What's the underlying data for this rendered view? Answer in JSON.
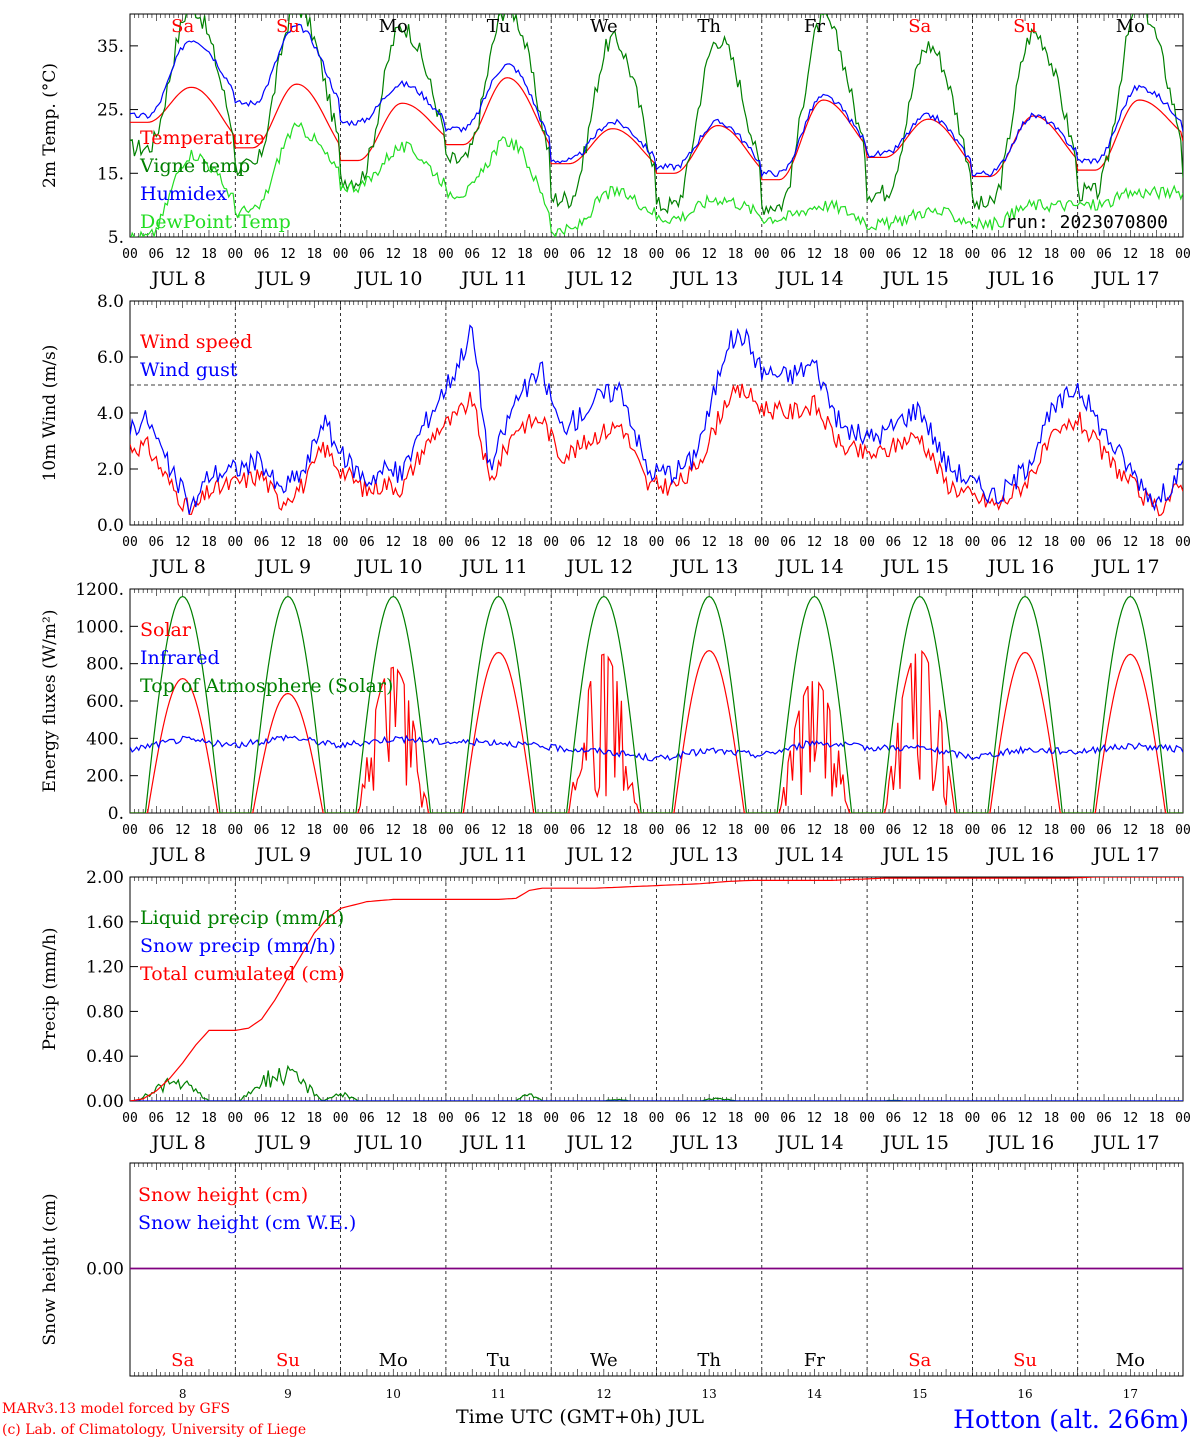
{
  "colors": {
    "red": "#ff0000",
    "green": "#008000",
    "blue": "#0000ff",
    "lightgreen": "#22dd22",
    "purple": "#800080",
    "black": "#000000"
  },
  "axis": {
    "hour_labels": [
      "00",
      "06",
      "12",
      "18"
    ],
    "final_hour_label": "00",
    "date_labels": [
      "JUL  8",
      "JUL  9",
      "JUL 10",
      "JUL 11",
      "JUL 12",
      "JUL 13",
      "JUL 14",
      "JUL 15",
      "JUL 16",
      "JUL 17"
    ],
    "weekdays": [
      {
        "label": "Sa",
        "weekend": true
      },
      {
        "label": "Su",
        "weekend": true
      },
      {
        "label": "Mo",
        "weekend": false
      },
      {
        "label": "Tu",
        "weekend": false
      },
      {
        "label": "We",
        "weekend": false
      },
      {
        "label": "Th",
        "weekend": false
      },
      {
        "label": "Fr",
        "weekend": false
      },
      {
        "label": "Sa",
        "weekend": true
      },
      {
        "label": "Su",
        "weekend": true
      },
      {
        "label": "Mo",
        "weekend": false
      }
    ],
    "day_numbers": [
      "8",
      "9",
      "10",
      "11",
      "12",
      "13",
      "14",
      "15",
      "16",
      "17"
    ],
    "bottom_label": "Time UTC (GMT+0h) JUL"
  },
  "footer": {
    "credit_line1": "MARv3.13 model forced by GFS",
    "credit_line2": "(c) Lab. of Climatology, University of Liege",
    "station": "Hotton (alt. 266m)"
  },
  "chart_data": [
    {
      "type": "line",
      "id": "temperature",
      "ylabel": "2m Temp. (°C)",
      "ylim": [
        5,
        40
      ],
      "yticks": [
        5,
        15,
        25,
        35
      ],
      "ytick_labels": [
        "5.",
        "15.",
        "25.",
        "35."
      ],
      "run_label": "run: 2023070800",
      "x_unit": "hours since 2023-07-08 00 UTC",
      "x_range": [
        0,
        240
      ],
      "series": [
        {
          "name": "Temperature",
          "color": "red",
          "mins": [
            23,
            19,
            17,
            19.5,
            16.5,
            15,
            14,
            17.5,
            14.5,
            15.5,
            20
          ],
          "maxs": [
            28.5,
            29,
            26,
            30,
            22,
            22.5,
            26.5,
            23.5,
            24,
            26.5
          ],
          "noise": 0
        },
        {
          "name": "Vigne temp",
          "color": "green",
          "mins": [
            19,
            16,
            14,
            17,
            11,
            10,
            10,
            12,
            10,
            12,
            15
          ],
          "maxs": [
            41,
            41,
            38,
            41,
            36,
            36,
            39,
            35,
            37,
            41
          ],
          "noise": 1.5
        },
        {
          "name": "Humidex",
          "color": "blue",
          "mins": [
            24,
            26,
            23,
            22,
            17,
            16,
            15,
            18,
            15,
            17,
            22
          ],
          "maxs": [
            36,
            38,
            29,
            32,
            23,
            23,
            27,
            24,
            24,
            28.5
          ],
          "noise": 0.5
        },
        {
          "name": "DewPoint Temp",
          "color": "lightgreen",
          "mins": [
            5,
            9,
            13,
            12,
            6,
            8,
            8,
            7,
            7,
            10,
            12
          ],
          "maxs": [
            18,
            22,
            19,
            20,
            12,
            11,
            10,
            9,
            10,
            12
          ],
          "noise": 1
        }
      ]
    },
    {
      "type": "line",
      "id": "wind",
      "ylabel": "10m Wind (m/s)",
      "ylim": [
        0,
        8
      ],
      "yticks": [
        0,
        2,
        4,
        6,
        8
      ],
      "ytick_labels": [
        "0.0",
        "2.0",
        "4.0",
        "6.0",
        "8.0"
      ],
      "reference_line": 5,
      "x_range": [
        0,
        240
      ],
      "series": [
        {
          "name": "Wind speed",
          "color": "red",
          "x": [
            0,
            4,
            9,
            14,
            18,
            24,
            30,
            34,
            40,
            44,
            48,
            54,
            58,
            62,
            66,
            70,
            74,
            78,
            82,
            88,
            94,
            98,
            102,
            106,
            112,
            118,
            124,
            128,
            132,
            136,
            140,
            144,
            150,
            156,
            162,
            168,
            172,
            176,
            180,
            186,
            192,
            198,
            204,
            210,
            216,
            222,
            228,
            234,
            240
          ],
          "y": [
            2.8,
            2.8,
            1.5,
            0.4,
            1.2,
            1.5,
            1.8,
            0.8,
            1.5,
            2.8,
            2.0,
            1.2,
            1.5,
            1.3,
            2.5,
            3.4,
            3.8,
            4.5,
            1.5,
            3.5,
            3.8,
            2.5,
            2.7,
            3.2,
            3.6,
            1.4,
            1.4,
            1.8,
            3.0,
            4.5,
            4.8,
            4.2,
            4.0,
            4.3,
            2.8,
            2.5,
            2.6,
            3.0,
            3.2,
            1.5,
            1.0,
            0.7,
            1.5,
            3.0,
            3.8,
            2.5,
            1.5,
            0.5,
            1.5
          ],
          "noise": 0.35
        },
        {
          "name": "Wind gust",
          "color": "blue",
          "x": [
            0,
            4,
            9,
            14,
            18,
            24,
            30,
            34,
            40,
            44,
            48,
            54,
            58,
            62,
            66,
            70,
            74,
            78,
            82,
            88,
            94,
            98,
            102,
            106,
            112,
            118,
            124,
            128,
            132,
            136,
            140,
            144,
            150,
            156,
            162,
            168,
            172,
            176,
            180,
            186,
            192,
            198,
            204,
            210,
            216,
            222,
            228,
            234,
            240
          ],
          "y": [
            3.5,
            3.8,
            2.0,
            0.6,
            1.8,
            2.0,
            2.3,
            1.2,
            2.0,
            3.8,
            2.5,
            1.6,
            2.0,
            1.8,
            3.3,
            4.4,
            5.5,
            7.0,
            2.0,
            4.5,
            5.5,
            3.5,
            3.8,
            4.5,
            4.9,
            1.9,
            1.9,
            2.3,
            4.0,
            6.5,
            6.8,
            5.5,
            5.3,
            5.8,
            3.5,
            3.1,
            3.3,
            3.8,
            4.2,
            2.2,
            1.5,
            1.0,
            2.0,
            4.0,
            5.0,
            3.3,
            2.0,
            0.8,
            2.0
          ],
          "noise": 0.4
        }
      ]
    },
    {
      "type": "line",
      "id": "energy",
      "ylabel": "Energy fluxes (W/m²)",
      "ylim": [
        0,
        1200
      ],
      "yticks": [
        0,
        200,
        400,
        600,
        800,
        1000,
        1200
      ],
      "ytick_labels": [
        "0.",
        "200.",
        "400.",
        "600.",
        "800.",
        "1000.",
        "1200."
      ],
      "x_range": [
        0,
        240
      ],
      "series": [
        {
          "name": "Solar",
          "color": "red",
          "daily_peak": [
            720,
            640,
            780,
            860,
            850,
            870,
            710,
            870,
            860,
            850
          ],
          "cloudy_days": [
            2,
            4,
            6,
            7
          ],
          "daylight_hours": [
            4,
            20
          ]
        },
        {
          "name": "Infrared",
          "color": "blue",
          "x": [
            0,
            12,
            24,
            36,
            48,
            60,
            72,
            84,
            96,
            108,
            120,
            132,
            144,
            156,
            168,
            180,
            192,
            204,
            216,
            228,
            240
          ],
          "y": [
            340,
            395,
            360,
            410,
            360,
            400,
            380,
            380,
            350,
            330,
            290,
            335,
            310,
            380,
            350,
            350,
            300,
            340,
            330,
            360,
            340
          ],
          "noise": 18
        },
        {
          "name": "Top of Atmosphere (Solar)",
          "color": "green",
          "daily_peak": 1160,
          "daylight_hours": [
            3.5,
            20.5
          ]
        }
      ]
    },
    {
      "type": "line",
      "id": "precip",
      "ylabel": "Precip (mm/h)",
      "ylim": [
        0,
        2
      ],
      "yticks": [
        0,
        0.4,
        0.8,
        1.2,
        1.6,
        2.0
      ],
      "ytick_labels": [
        "0.00",
        "0.40",
        "0.80",
        "1.20",
        "1.60",
        "2.00"
      ],
      "x_range": [
        0,
        240
      ],
      "series": [
        {
          "name": "Liquid precip (mm/h)",
          "color": "green",
          "bursts": [
            [
              2,
              18,
              0.22
            ],
            [
              25,
              44,
              0.32
            ],
            [
              44,
              52,
              0.08
            ],
            [
              88,
              94,
              0.07
            ],
            [
              108,
              114,
              0.02
            ],
            [
              130,
              138,
              0.03
            ],
            [
              172,
              176,
              0.01
            ]
          ]
        },
        {
          "name": "Snow precip (mm/h)",
          "color": "blue",
          "x": [
            0,
            240
          ],
          "y": [
            0,
            0
          ]
        },
        {
          "name": "Total cumulated (cm)",
          "color": "red",
          "x": [
            0,
            3,
            6,
            9,
            12,
            15,
            18,
            24,
            27,
            30,
            33,
            36,
            39,
            42,
            45,
            48,
            54,
            60,
            66,
            72,
            78,
            84,
            88,
            91,
            94,
            100,
            106,
            112,
            118,
            124,
            130,
            136,
            142,
            148,
            154,
            160,
            166,
            172,
            178,
            184,
            190,
            196,
            202,
            208,
            214,
            220,
            226,
            232,
            240
          ],
          "y": [
            0,
            0.02,
            0.09,
            0.2,
            0.34,
            0.5,
            0.63,
            0.63,
            0.65,
            0.73,
            0.9,
            1.1,
            1.3,
            1.5,
            1.63,
            1.72,
            1.78,
            1.8,
            1.8,
            1.8,
            1.8,
            1.8,
            1.81,
            1.88,
            1.9,
            1.9,
            1.9,
            1.91,
            1.92,
            1.93,
            1.94,
            1.96,
            1.97,
            1.97,
            1.97,
            1.97,
            1.98,
            1.99,
            1.99,
            1.99,
            1.99,
            1.99,
            1.99,
            1.99,
            1.99,
            2.0,
            2.0,
            2.0,
            2.0
          ]
        }
      ]
    },
    {
      "type": "line",
      "id": "snow",
      "ylabel": "Snow height (cm)",
      "yticks": [
        0
      ],
      "ytick_labels": [
        "0.00"
      ],
      "x_range": [
        0,
        240
      ],
      "series": [
        {
          "name": "Snow height (cm)",
          "color": "red",
          "x": [
            0,
            240
          ],
          "y": [
            0,
            0
          ]
        },
        {
          "name": "Snow height (cm W.E.)",
          "color": "blue",
          "x": [
            0,
            240
          ],
          "y": [
            0,
            0
          ]
        }
      ]
    }
  ]
}
